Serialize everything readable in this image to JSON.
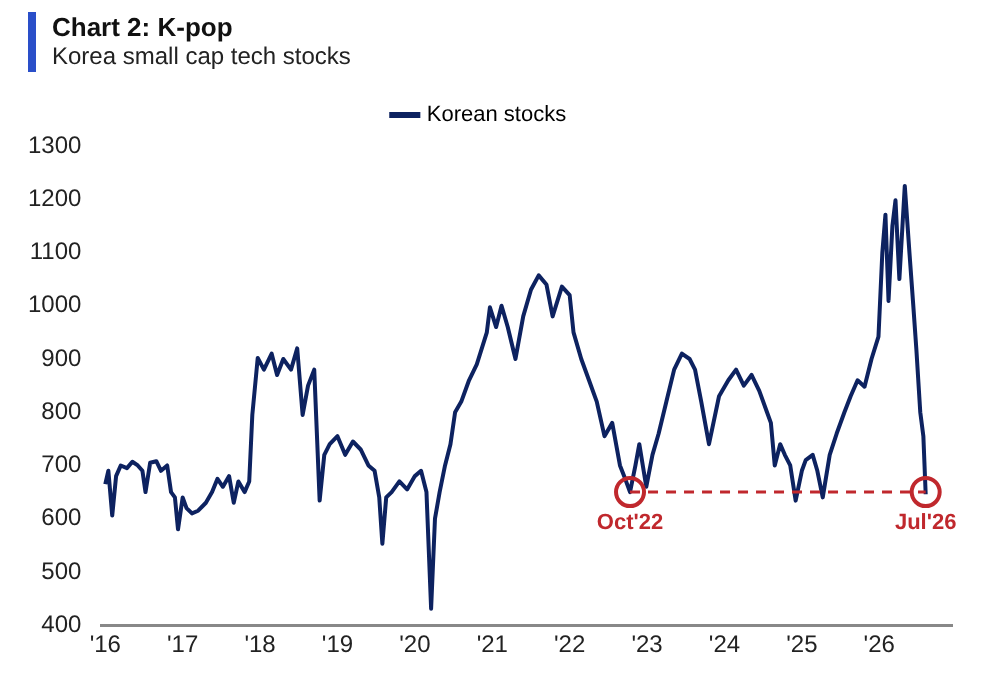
{
  "chart_data": {
    "type": "line",
    "title": "Chart 2: K-pop",
    "subtitle": "Korea small cap tech stocks",
    "xlim": [
      2015.95,
      2026.94
    ],
    "xticks": [
      {
        "value": 2016,
        "label": "'16"
      },
      {
        "value": 2017,
        "label": "'17"
      },
      {
        "value": 2018,
        "label": "'18"
      },
      {
        "value": 2019,
        "label": "'19"
      },
      {
        "value": 2020,
        "label": "'20"
      },
      {
        "value": 2021,
        "label": "'21"
      },
      {
        "value": 2022,
        "label": "'22"
      },
      {
        "value": 2023,
        "label": "'23"
      },
      {
        "value": 2024,
        "label": "'24"
      },
      {
        "value": 2025,
        "label": "'25"
      },
      {
        "value": 2026,
        "label": "'26"
      }
    ],
    "ylim": [
      400,
      1300
    ],
    "yticks": [
      400,
      500,
      600,
      700,
      800,
      900,
      1000,
      1100,
      1200,
      1300
    ],
    "grid": false,
    "legend": "top",
    "marker": "none",
    "line_style": "solid",
    "series": [
      {
        "name": "Korean stocks",
        "color": "#0d2260",
        "x": [
          2016.0,
          2016.04,
          2016.09,
          2016.14,
          2016.2,
          2016.28,
          2016.35,
          2016.42,
          2016.48,
          2016.52,
          2016.58,
          2016.66,
          2016.72,
          2016.8,
          2016.85,
          2016.9,
          2016.94,
          2017.0,
          2017.05,
          2017.12,
          2017.2,
          2017.3,
          2017.38,
          2017.45,
          2017.52,
          2017.6,
          2017.66,
          2017.72,
          2017.8,
          2017.86,
          2017.9,
          2017.97,
          2018.05,
          2018.15,
          2018.22,
          2018.3,
          2018.4,
          2018.48,
          2018.55,
          2018.62,
          2018.7,
          2018.77,
          2018.83,
          2018.9,
          2019.0,
          2019.1,
          2019.2,
          2019.3,
          2019.4,
          2019.48,
          2019.54,
          2019.58,
          2019.63,
          2019.7,
          2019.8,
          2019.9,
          2020.0,
          2020.08,
          2020.15,
          2020.21,
          2020.26,
          2020.32,
          2020.39,
          2020.46,
          2020.52,
          2020.6,
          2020.7,
          2020.8,
          2020.93,
          2020.97,
          2021.05,
          2021.12,
          2021.2,
          2021.3,
          2021.4,
          2021.5,
          2021.6,
          2021.7,
          2021.78,
          2021.9,
          2022.0,
          2022.05,
          2022.15,
          2022.25,
          2022.35,
          2022.45,
          2022.55,
          2022.65,
          2022.72,
          2022.78,
          2022.85,
          2022.9,
          2022.99,
          2023.07,
          2023.15,
          2023.25,
          2023.35,
          2023.45,
          2023.55,
          2023.62,
          2023.7,
          2023.8,
          2023.93,
          2024.05,
          2024.15,
          2024.25,
          2024.35,
          2024.45,
          2024.55,
          2024.6,
          2024.65,
          2024.72,
          2024.78,
          2024.85,
          2024.92,
          2025.0,
          2025.05,
          2025.14,
          2025.2,
          2025.27,
          2025.36,
          2025.45,
          2025.55,
          2025.63,
          2025.72,
          2025.81,
          2025.9,
          2025.99,
          2026.04,
          2026.08,
          2026.12,
          2026.17,
          2026.21,
          2026.26,
          2026.3,
          2026.33,
          2026.39,
          2026.44,
          2026.48,
          2026.53,
          2026.57,
          2026.6
        ],
        "values": [
          665,
          690,
          606,
          680,
          700,
          695,
          707,
          700,
          690,
          650,
          705,
          708,
          690,
          700,
          650,
          640,
          580,
          640,
          620,
          610,
          615,
          630,
          650,
          675,
          660,
          680,
          630,
          670,
          650,
          670,
          795,
          902,
          880,
          910,
          870,
          900,
          880,
          920,
          795,
          850,
          880,
          634,
          720,
          740,
          755,
          720,
          745,
          730,
          700,
          690,
          640,
          553,
          640,
          650,
          670,
          655,
          680,
          690,
          650,
          431,
          600,
          650,
          700,
          740,
          800,
          820,
          860,
          890,
          950,
          997,
          960,
          1000,
          960,
          900,
          980,
          1030,
          1057,
          1040,
          980,
          1036,
          1020,
          950,
          900,
          860,
          820,
          755,
          780,
          700,
          674,
          650,
          700,
          740,
          660,
          720,
          760,
          820,
          880,
          910,
          900,
          880,
          820,
          740,
          830,
          860,
          880,
          850,
          870,
          840,
          800,
          780,
          700,
          740,
          720,
          700,
          634,
          690,
          710,
          720,
          690,
          640,
          720,
          760,
          800,
          830,
          860,
          848,
          900,
          942,
          1100,
          1171,
          1009,
          1150,
          1198,
          1050,
          1150,
          1225,
          1100,
          1000,
          917,
          800,
          755,
          646
        ]
      },
      {
        "color": "#c0282d",
        "line_style": "dashed",
        "marker": "circle",
        "x": [
          2022.78,
          2026.6
        ],
        "values": [
          650,
          650
        ]
      }
    ],
    "annotations": [
      {
        "text": "Oct'22",
        "x": 2022.78,
        "y": 650
      },
      {
        "text": "Jul'26",
        "x": 2026.6,
        "y": 650
      }
    ]
  }
}
